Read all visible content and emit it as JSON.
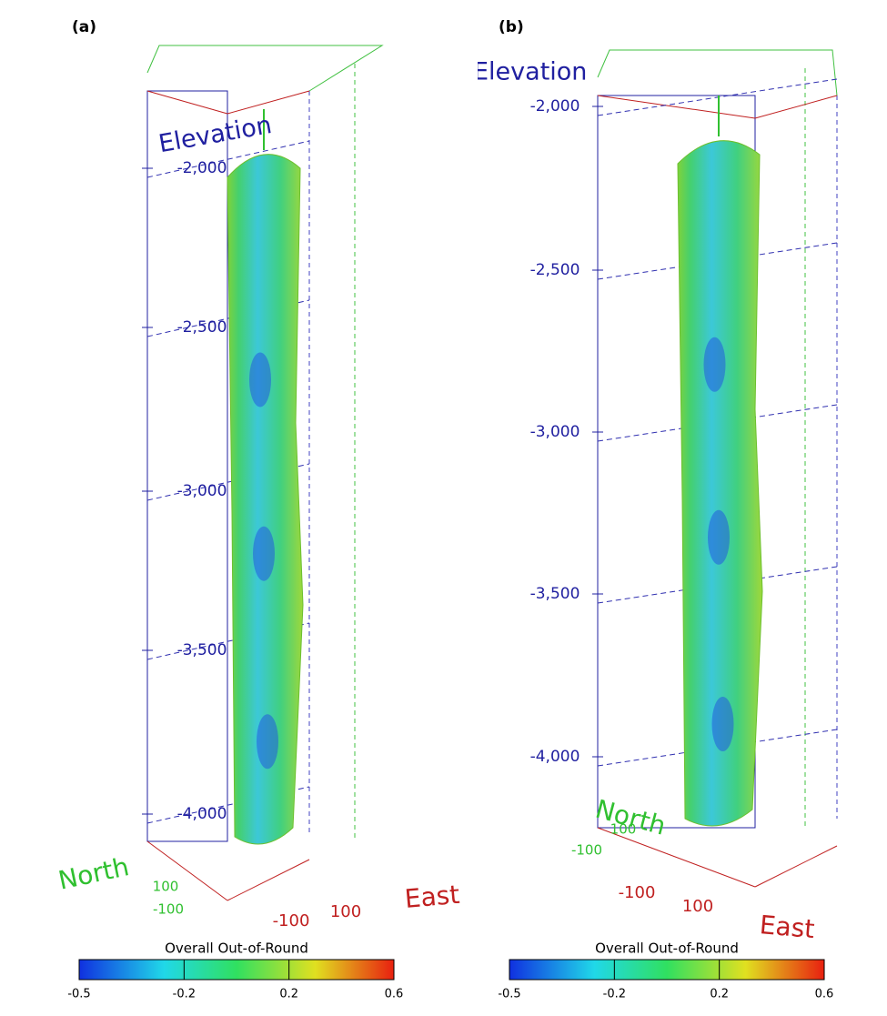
{
  "panels": [
    {
      "label": "(a)",
      "elevation_title": "Elevation",
      "elevation_ticks": [
        "-2,000",
        "-2,500",
        "-3,000",
        "-3,500",
        "-4,000"
      ],
      "north_title": "North",
      "north_ticks": [
        "100",
        "-100"
      ],
      "east_title": "East",
      "east_ticks": [
        "-100",
        "100"
      ],
      "colorbar": {
        "title": "Overall Out-of-Round",
        "ticks": [
          "-0.5",
          "-0.2",
          "0.2",
          "0.6"
        ]
      }
    },
    {
      "label": "(b)",
      "elevation_title": "Elevation",
      "elevation_ticks": [
        "-2,000",
        "-2,500",
        "-3,000",
        "-3,500",
        "-4,000"
      ],
      "north_title": "North",
      "north_ticks": [
        "100",
        "-100"
      ],
      "east_title": "East",
      "east_ticks": [
        "-100",
        "100"
      ],
      "colorbar": {
        "title": "Overall Out-of-Round",
        "ticks": [
          "-0.5",
          "-0.2",
          "0.2",
          "0.6"
        ]
      }
    }
  ]
}
